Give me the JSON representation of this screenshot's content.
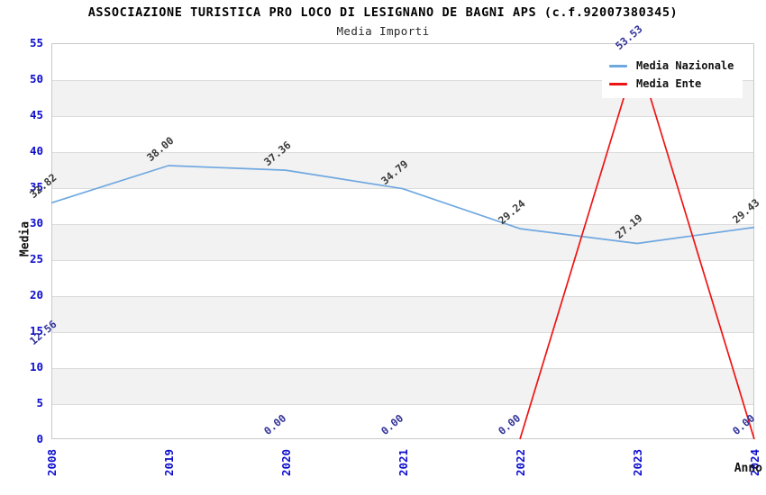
{
  "chart_data": {
    "type": "line",
    "title": "ASSOCIAZIONE TURISTICA PRO LOCO DI LESIGNANO DE BAGNI APS (c.f.92007380345)",
    "subtitle": "Media Importi",
    "xlabel": "Anno",
    "ylabel": "Media",
    "categories": [
      "2008",
      "2019",
      "2020",
      "2021",
      "2022",
      "2023",
      "2024"
    ],
    "ylim": [
      0,
      55
    ],
    "ytick_step": 5,
    "grid": true,
    "background_bands": true,
    "legend": {
      "position": "top-right",
      "entries": [
        "Media Nazionale",
        "Media Ente"
      ]
    },
    "series": [
      {
        "name": "Media Nazionale",
        "color": "#6FA8E0",
        "label_color": "#3A3A3A",
        "values": [
          32.82,
          38.0,
          37.36,
          34.79,
          29.24,
          27.19,
          29.43
        ],
        "labels": [
          "32.82",
          "38.00",
          "37.36",
          "34.79",
          "29.24",
          "27.19",
          "29.43"
        ],
        "line_indices": [
          0,
          1,
          2,
          3,
          4,
          5,
          6
        ]
      },
      {
        "name": "Media Ente",
        "color": "#EE1414",
        "label_color": "#333399",
        "values": [
          12.56,
          null,
          0.0,
          0.0,
          0.0,
          53.53,
          0.0
        ],
        "labels": [
          "12.56",
          null,
          "0.00",
          "0.00",
          "0.00",
          "53.53",
          "0.00"
        ],
        "line_indices": [
          4,
          5,
          6
        ]
      }
    ],
    "colors": {
      "title": "#1A1A1A",
      "tick_label": "#0D0DCE",
      "axis_title": "#111111",
      "band": "#F2F2F2",
      "grid": "#DCDCDC",
      "plot_border": "#C9C9C9",
      "legend_bg": "#FFFFFF"
    }
  }
}
